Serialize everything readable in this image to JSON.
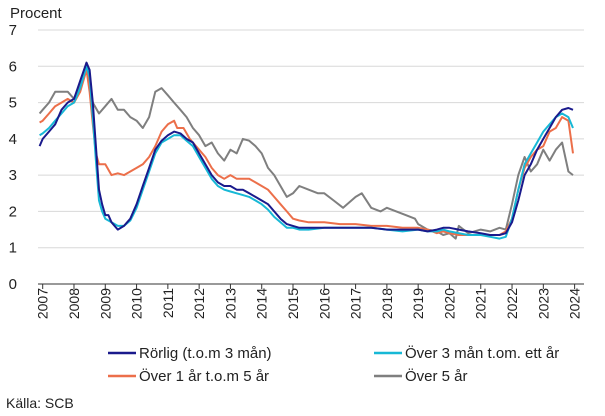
{
  "chart_data": {
    "type": "line",
    "ylabel": "Procent",
    "ylim": [
      0,
      7
    ],
    "y_ticks": [
      "0",
      "1",
      "2",
      "3",
      "4",
      "5",
      "6",
      "7"
    ],
    "xlim": [
      2006.85,
      2024.3
    ],
    "x_ticks": [
      "2007",
      "2008",
      "2009",
      "2010",
      "2011",
      "2012",
      "2013",
      "2014",
      "2015",
      "2016",
      "2017",
      "2018",
      "2019",
      "2020",
      "2021",
      "2022",
      "2023",
      "2024"
    ],
    "grid": "horizontal",
    "legend_position": "bottom",
    "source": "Källa: SCB",
    "series": [
      {
        "name": "Rörlig (t.o.m 3 mån)",
        "color": "#1a1a8c",
        "x": [
          2006.9,
          2007.0,
          2007.2,
          2007.4,
          2007.6,
          2007.8,
          2008.0,
          2008.2,
          2008.4,
          2008.5,
          2008.6,
          2008.7,
          2008.8,
          2008.9,
          2009.0,
          2009.1,
          2009.2,
          2009.4,
          2009.6,
          2009.8,
          2010.0,
          2010.2,
          2010.4,
          2010.6,
          2010.8,
          2011.0,
          2011.2,
          2011.4,
          2011.6,
          2011.8,
          2012.0,
          2012.2,
          2012.4,
          2012.6,
          2012.8,
          2013.0,
          2013.2,
          2013.4,
          2013.6,
          2013.8,
          2014.0,
          2014.2,
          2014.4,
          2014.6,
          2014.8,
          2015.0,
          2015.2,
          2015.5,
          2016.0,
          2016.5,
          2017.0,
          2017.5,
          2018.0,
          2018.5,
          2019.0,
          2019.3,
          2019.6,
          2019.8,
          2020.0,
          2020.3,
          2020.6,
          2021.0,
          2021.3,
          2021.6,
          2021.8,
          2022.0,
          2022.2,
          2022.4,
          2022.6,
          2022.8,
          2023.0,
          2023.2,
          2023.4,
          2023.6,
          2023.8,
          2023.95
        ],
        "y": [
          3.8,
          4.0,
          4.2,
          4.4,
          4.8,
          5.0,
          5.1,
          5.6,
          6.1,
          5.9,
          5.0,
          3.8,
          2.6,
          2.2,
          1.9,
          1.9,
          1.7,
          1.5,
          1.6,
          1.8,
          2.2,
          2.7,
          3.2,
          3.7,
          3.95,
          4.1,
          4.2,
          4.15,
          4.0,
          3.9,
          3.6,
          3.3,
          3.0,
          2.8,
          2.7,
          2.7,
          2.6,
          2.6,
          2.5,
          2.4,
          2.3,
          2.2,
          2.0,
          1.8,
          1.65,
          1.6,
          1.55,
          1.55,
          1.55,
          1.55,
          1.55,
          1.55,
          1.5,
          1.5,
          1.5,
          1.45,
          1.5,
          1.55,
          1.55,
          1.5,
          1.45,
          1.4,
          1.35,
          1.35,
          1.4,
          1.7,
          2.3,
          3.0,
          3.3,
          3.7,
          4.0,
          4.3,
          4.6,
          4.8,
          4.85,
          4.8
        ]
      },
      {
        "name": "Över 3 mån t.om. ett år",
        "color": "#17b8d6",
        "x": [
          2006.9,
          2007.0,
          2007.2,
          2007.4,
          2007.6,
          2007.8,
          2008.0,
          2008.2,
          2008.4,
          2008.5,
          2008.6,
          2008.7,
          2008.8,
          2008.9,
          2009.0,
          2009.1,
          2009.2,
          2009.4,
          2009.6,
          2009.8,
          2010.0,
          2010.2,
          2010.4,
          2010.6,
          2010.8,
          2011.0,
          2011.2,
          2011.4,
          2011.6,
          2011.8,
          2012.0,
          2012.2,
          2012.4,
          2012.6,
          2012.8,
          2013.0,
          2013.2,
          2013.4,
          2013.6,
          2013.8,
          2014.0,
          2014.2,
          2014.4,
          2014.6,
          2014.8,
          2015.0,
          2015.2,
          2015.5,
          2016.0,
          2016.5,
          2017.0,
          2017.5,
          2018.0,
          2018.5,
          2019.0,
          2019.3,
          2019.6,
          2019.8,
          2020.0,
          2020.3,
          2020.6,
          2021.0,
          2021.3,
          2021.6,
          2021.8,
          2022.0,
          2022.2,
          2022.4,
          2022.6,
          2022.8,
          2023.0,
          2023.2,
          2023.4,
          2023.6,
          2023.8,
          2023.95
        ],
        "y": [
          4.1,
          4.15,
          4.3,
          4.5,
          4.7,
          4.9,
          5.0,
          5.4,
          6.0,
          5.7,
          4.6,
          3.4,
          2.3,
          2.0,
          1.8,
          1.75,
          1.7,
          1.6,
          1.6,
          1.75,
          2.1,
          2.6,
          3.1,
          3.6,
          3.9,
          4.0,
          4.1,
          4.1,
          3.95,
          3.8,
          3.5,
          3.2,
          2.9,
          2.7,
          2.6,
          2.55,
          2.5,
          2.45,
          2.4,
          2.3,
          2.2,
          2.05,
          1.85,
          1.7,
          1.55,
          1.55,
          1.5,
          1.5,
          1.55,
          1.55,
          1.55,
          1.55,
          1.5,
          1.45,
          1.5,
          1.45,
          1.45,
          1.5,
          1.45,
          1.4,
          1.35,
          1.35,
          1.3,
          1.25,
          1.3,
          1.8,
          2.6,
          3.3,
          3.6,
          3.9,
          4.2,
          4.4,
          4.6,
          4.7,
          4.6,
          4.3
        ]
      },
      {
        "name": "Över 1 år t.o.m 5 år",
        "color": "#ec6f4a",
        "x": [
          2006.9,
          2007.0,
          2007.2,
          2007.4,
          2007.6,
          2007.8,
          2008.0,
          2008.2,
          2008.4,
          2008.5,
          2008.6,
          2008.7,
          2008.8,
          2008.9,
          2009.0,
          2009.2,
          2009.4,
          2009.6,
          2009.8,
          2010.0,
          2010.2,
          2010.4,
          2010.6,
          2010.8,
          2011.0,
          2011.2,
          2011.3,
          2011.5,
          2011.7,
          2011.9,
          2012.0,
          2012.2,
          2012.4,
          2012.6,
          2012.8,
          2013.0,
          2013.2,
          2013.4,
          2013.6,
          2013.8,
          2014.0,
          2014.2,
          2014.4,
          2014.6,
          2014.8,
          2015.0,
          2015.2,
          2015.5,
          2016.0,
          2016.5,
          2017.0,
          2017.5,
          2018.0,
          2018.5,
          2019.0,
          2019.3,
          2019.6,
          2019.8,
          2020.0,
          2020.3,
          2020.6,
          2021.0,
          2021.3,
          2021.6,
          2021.8,
          2022.0,
          2022.2,
          2022.4,
          2022.6,
          2022.8,
          2023.0,
          2023.2,
          2023.4,
          2023.6,
          2023.8,
          2023.95
        ],
        "y": [
          4.45,
          4.5,
          4.7,
          4.9,
          5.0,
          5.1,
          5.0,
          5.3,
          5.9,
          5.3,
          4.4,
          3.6,
          3.3,
          3.3,
          3.3,
          3.0,
          3.05,
          3.0,
          3.1,
          3.2,
          3.3,
          3.5,
          3.8,
          4.2,
          4.4,
          4.5,
          4.3,
          4.3,
          4.0,
          3.8,
          3.7,
          3.5,
          3.2,
          3.0,
          2.9,
          3.0,
          2.9,
          2.9,
          2.9,
          2.8,
          2.7,
          2.6,
          2.4,
          2.2,
          2.0,
          1.8,
          1.75,
          1.7,
          1.7,
          1.65,
          1.65,
          1.6,
          1.6,
          1.55,
          1.55,
          1.5,
          1.4,
          1.45,
          1.4,
          1.35,
          1.35,
          1.35,
          1.35,
          1.35,
          1.45,
          1.8,
          2.6,
          3.2,
          3.5,
          3.7,
          3.8,
          4.2,
          4.3,
          4.6,
          4.5,
          3.6
        ]
      },
      {
        "name": "Över 5 år",
        "color": "#7f7f7f",
        "x": [
          2006.9,
          2007.0,
          2007.2,
          2007.4,
          2007.6,
          2007.8,
          2008.0,
          2008.2,
          2008.4,
          2008.6,
          2008.8,
          2009.0,
          2009.2,
          2009.4,
          2009.6,
          2009.8,
          2010.0,
          2010.2,
          2010.4,
          2010.6,
          2010.8,
          2011.0,
          2011.2,
          2011.4,
          2011.6,
          2011.8,
          2012.0,
          2012.2,
          2012.4,
          2012.6,
          2012.8,
          2013.0,
          2013.2,
          2013.4,
          2013.6,
          2013.8,
          2014.0,
          2014.2,
          2014.4,
          2014.6,
          2014.8,
          2015.0,
          2015.2,
          2015.5,
          2015.8,
          2016.0,
          2016.3,
          2016.6,
          2017.0,
          2017.2,
          2017.5,
          2017.8,
          2018.0,
          2018.3,
          2018.6,
          2018.9,
          2019.0,
          2019.3,
          2019.6,
          2019.8,
          2020.0,
          2020.2,
          2020.3,
          2020.6,
          2021.0,
          2021.3,
          2021.6,
          2021.8,
          2022.0,
          2022.2,
          2022.4,
          2022.6,
          2022.8,
          2023.0,
          2023.2,
          2023.4,
          2023.6,
          2023.8,
          2023.95
        ],
        "y": [
          4.7,
          4.8,
          5.0,
          5.3,
          5.3,
          5.3,
          5.1,
          5.5,
          6.1,
          5.0,
          4.7,
          4.9,
          5.1,
          4.8,
          4.8,
          4.6,
          4.5,
          4.3,
          4.6,
          5.3,
          5.4,
          5.2,
          5.0,
          4.8,
          4.6,
          4.3,
          4.1,
          3.8,
          3.9,
          3.6,
          3.4,
          3.7,
          3.6,
          4.0,
          3.95,
          3.8,
          3.6,
          3.2,
          3.0,
          2.7,
          2.4,
          2.5,
          2.7,
          2.6,
          2.5,
          2.5,
          2.3,
          2.1,
          2.4,
          2.5,
          2.1,
          2.0,
          2.1,
          2.0,
          1.9,
          1.8,
          1.65,
          1.5,
          1.45,
          1.35,
          1.4,
          1.25,
          1.6,
          1.4,
          1.5,
          1.45,
          1.55,
          1.5,
          2.2,
          3.0,
          3.5,
          3.1,
          3.3,
          3.7,
          3.4,
          3.7,
          3.9,
          3.1,
          3.0
        ]
      }
    ]
  }
}
